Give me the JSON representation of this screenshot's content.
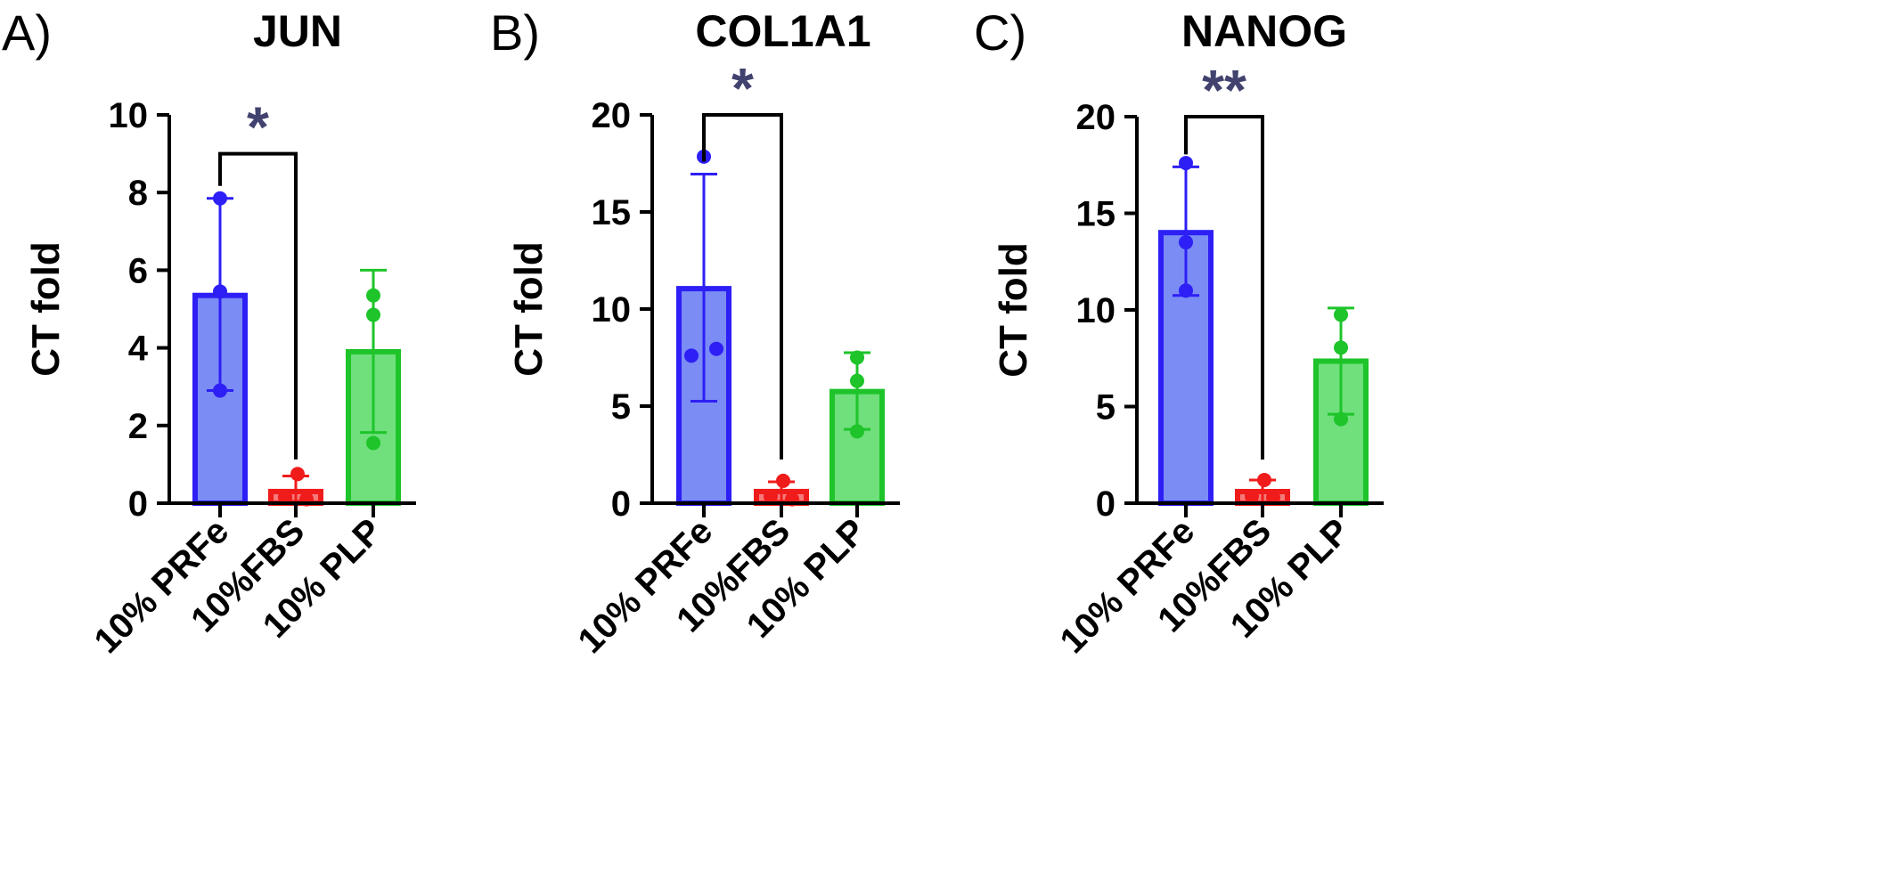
{
  "chart_data": [
    {
      "type": "bar",
      "panel_label": "A)",
      "title": "JUN",
      "ylabel": "CT fold",
      "ylim": [
        0,
        10
      ],
      "yticks": [
        0,
        2,
        4,
        6,
        8,
        10
      ],
      "categories": [
        "10% PRFe",
        "10%FBS",
        "10% PLP"
      ],
      "values": [
        5.35,
        0.3,
        3.9
      ],
      "error_upper": [
        7.85,
        0.7,
        6.0
      ],
      "error_lower": [
        2.9,
        0.05,
        1.82
      ],
      "points": [
        [
          7.85,
          5.45,
          2.9
        ],
        [
          0.75,
          0.15,
          0.1
        ],
        [
          5.35,
          4.85,
          1.55
        ]
      ],
      "colors": {
        "fill": [
          "#7b8cf5",
          "#f57b7b",
          "#6fe07c"
        ],
        "stroke": [
          "#2d1ff5",
          "#f01b1b",
          "#1ec42a"
        ]
      },
      "significance": {
        "from": 0,
        "to": 1,
        "label": "*",
        "bracket_y": 9.0
      }
    },
    {
      "type": "bar",
      "panel_label": "B)",
      "title": "COL1A1",
      "ylabel": "CT fold",
      "ylim": [
        0,
        20
      ],
      "yticks": [
        0,
        5,
        10,
        15,
        20
      ],
      "categories": [
        "10% PRFe",
        "10%FBS",
        "10% PLP"
      ],
      "values": [
        11.05,
        0.6,
        5.75
      ],
      "error_upper": [
        16.95,
        1.1,
        7.75
      ],
      "error_lower": [
        5.25,
        0.1,
        3.8
      ],
      "points": [
        [
          17.85,
          7.95,
          7.6
        ],
        [
          1.15,
          0.35,
          0.2
        ],
        [
          7.5,
          6.3,
          3.7
        ]
      ],
      "colors": {
        "fill": [
          "#7b8cf5",
          "#f57b7b",
          "#6fe07c"
        ],
        "stroke": [
          "#2d1ff5",
          "#f01b1b",
          "#1ec42a"
        ]
      },
      "significance": {
        "from": 0,
        "to": 1,
        "label": "*",
        "bracket_y": 20.0
      }
    },
    {
      "type": "bar",
      "panel_label": "C)",
      "title": "NANOG",
      "ylabel": "CT fold",
      "ylim": [
        0,
        20
      ],
      "yticks": [
        0,
        5,
        10,
        15,
        20
      ],
      "categories": [
        "10% PRFe",
        "10%FBS",
        "10% PLP"
      ],
      "values": [
        14.0,
        0.6,
        7.35
      ],
      "error_upper": [
        17.4,
        1.2,
        10.1
      ],
      "error_lower": [
        10.75,
        0.05,
        4.6
      ],
      "points": [
        [
          17.6,
          13.5,
          11.0
        ],
        [
          1.2,
          0.35,
          0.3
        ],
        [
          9.75,
          8.05,
          4.35
        ]
      ],
      "colors": {
        "fill": [
          "#7b8cf5",
          "#f57b7b",
          "#6fe07c"
        ],
        "stroke": [
          "#2d1ff5",
          "#f01b1b",
          "#1ec42a"
        ]
      },
      "significance": {
        "from": 0,
        "to": 1,
        "label": "**",
        "bracket_y": 20.0
      }
    }
  ]
}
